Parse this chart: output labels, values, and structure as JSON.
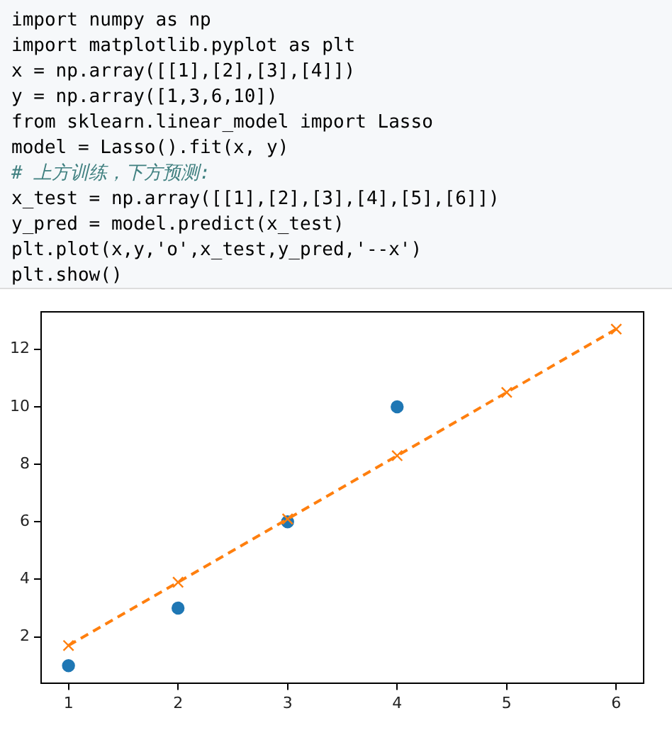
{
  "chart_data": {
    "type": "scatter",
    "annotations": [
      "import numpy as np",
      "import matplotlib.pyplot as plt",
      "x = np.array([[1],[2],[3],[4]])",
      "y = np.array([1,3,6,10])",
      "from sklearn.linear_model import Lasso",
      "model = Lasso().fit(x, y)",
      "# 上方训练，下方预测:",
      "x_test = np.array([[1],[2],[3],[4],[5],[6]])",
      "y_pred = model.predict(x_test)",
      "plt.plot(x,y,'o',x_test,y_pred,'--x')",
      "plt.show()"
    ],
    "series": [
      {
        "type": "scatter",
        "color": "#1f77b4",
        "marker": "circle",
        "x": [
          1,
          2,
          3,
          4
        ],
        "values": [
          1,
          3,
          6,
          10
        ]
      },
      {
        "type": "line",
        "color": "#ff7f0e",
        "marker": "cross",
        "line_style": "dashed",
        "x": [
          1,
          2,
          3,
          4,
          5,
          6
        ],
        "values": [
          1.7,
          3.9,
          6.1,
          8.3,
          10.5,
          12.7
        ]
      }
    ],
    "xlim": [
      0.75,
      6.25
    ],
    "ylim": [
      0.4,
      13.3
    ],
    "xticks": [
      1,
      2,
      3,
      4,
      5,
      6
    ],
    "yticks": [
      2,
      4,
      6,
      8,
      10,
      12
    ],
    "grid": false
  }
}
